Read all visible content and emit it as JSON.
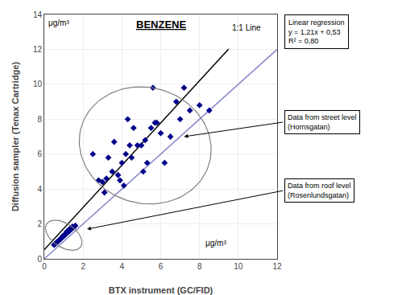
{
  "chart_data": {
    "type": "scatter",
    "title": "BENZENE",
    "xlabel": "BTX instrument (GC/FID)",
    "ylabel": "Diffusion sampler (Tenax Cartridge)",
    "xlim": [
      0,
      12
    ],
    "ylim": [
      0,
      14
    ],
    "xticks": [
      0,
      2,
      4,
      6,
      8,
      10,
      12
    ],
    "yticks": [
      0,
      2,
      4,
      6,
      8,
      10,
      12,
      14
    ],
    "grid": true,
    "series": [
      {
        "type": "line",
        "color": "#8888cc",
        "x": [
          0,
          12
        ],
        "y": [
          0,
          12
        ]
      },
      {
        "type": "line",
        "color": "#000000",
        "x": [
          0,
          9.5
        ],
        "y": [
          0.53,
          12.025
        ]
      },
      {
        "type": "scatter",
        "marker": "diamond",
        "color": "#00008B",
        "x": [
          2.8,
          3.0,
          3.2,
          3.5,
          3.8,
          4.0,
          4.2,
          4.5,
          4.8,
          5.0,
          5.2,
          5.5,
          5.8,
          6.0,
          6.5,
          7.0,
          7.5,
          8.0,
          8.5,
          3.3,
          3.6,
          4.1,
          4.6,
          5.3,
          6.2,
          3.9,
          4.4,
          5.1,
          5.7,
          6.8,
          2.5,
          3.1,
          4.3,
          5.6,
          7.2
        ],
        "y": [
          4.5,
          4.4,
          4.6,
          5.0,
          4.8,
          5.5,
          6.0,
          5.8,
          6.5,
          6.5,
          6.8,
          7.5,
          7.8,
          7.2,
          7.0,
          8.0,
          8.5,
          8.8,
          8.5,
          5.8,
          6.7,
          4.2,
          7.5,
          5.5,
          5.5,
          4.5,
          6.5,
          5.0,
          7.8,
          9.0,
          6.0,
          3.8,
          8.0,
          9.8,
          9.8
        ]
      },
      {
        "type": "scatter",
        "marker": "diamond",
        "color": "#00008B",
        "x": [
          0.5,
          0.6,
          0.7,
          0.8,
          0.9,
          1.0,
          1.1,
          1.2,
          1.3,
          1.4,
          1.5,
          1.6,
          0.55,
          0.65,
          0.75,
          0.85,
          0.95,
          1.05,
          1.15,
          1.25,
          1.35,
          1.45
        ],
        "y": [
          0.8,
          0.9,
          1.0,
          1.1,
          1.2,
          1.3,
          1.4,
          1.5,
          1.6,
          1.7,
          1.8,
          1.9,
          0.85,
          0.95,
          1.05,
          1.15,
          1.3,
          1.4,
          1.55,
          1.65,
          1.75,
          1.85
        ]
      }
    ],
    "ellipses": [
      {
        "center_x": 5.2,
        "center_y": 6.5,
        "width": 6.5,
        "height": 7.0,
        "angle": 50,
        "color": "gray"
      },
      {
        "center_x": 1.0,
        "center_y": 1.35,
        "width": 1.3,
        "height": 2.2,
        "angle": 50,
        "color": "gray"
      }
    ],
    "annotations": [
      {
        "text": "1:1 Line"
      },
      {
        "text": "μg/m³"
      },
      {
        "text": "μg/m³"
      },
      {
        "text": "Linear regression\ny = 1,21x + 0,53\nR² = 0,80"
      },
      {
        "text": "Data from street level\n(Hornsgatan)",
        "x": 7.2,
        "y": 7.0
      },
      {
        "text": "Data from roof level\n(Rosenlundsgatan)",
        "x": 2.2,
        "y": 1.7
      }
    ]
  }
}
